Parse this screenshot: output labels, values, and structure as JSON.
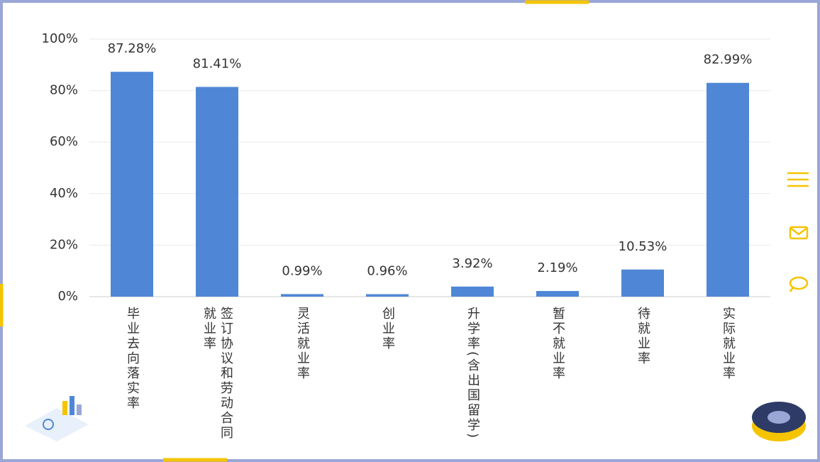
{
  "chart_data": {
    "type": "bar",
    "categories": [
      "毕业去向落实率",
      "签订协议和劳动合同就业率",
      "灵活就业率",
      "创业率",
      "升学率(含出国留学)",
      "暂不就业率",
      "待就业率",
      "实际就业率"
    ],
    "values": [
      87.28,
      81.41,
      0.99,
      0.96,
      3.92,
      2.19,
      10.53,
      82.99
    ],
    "value_labels": [
      "87.28%",
      "81.41%",
      "0.99%",
      "0.96%",
      "3.92%",
      "2.19%",
      "10.53%",
      "82.99%"
    ],
    "color": "#4f87d6",
    "ylim": [
      0,
      100
    ],
    "yticks": [
      {
        "value": 0,
        "label": "0%"
      },
      {
        "value": 20,
        "label": "20%"
      },
      {
        "value": 40,
        "label": "40%"
      },
      {
        "value": 60,
        "label": "60%"
      },
      {
        "value": 80,
        "label": "80%"
      },
      {
        "value": 100,
        "label": "100%"
      }
    ],
    "grid": true
  }
}
